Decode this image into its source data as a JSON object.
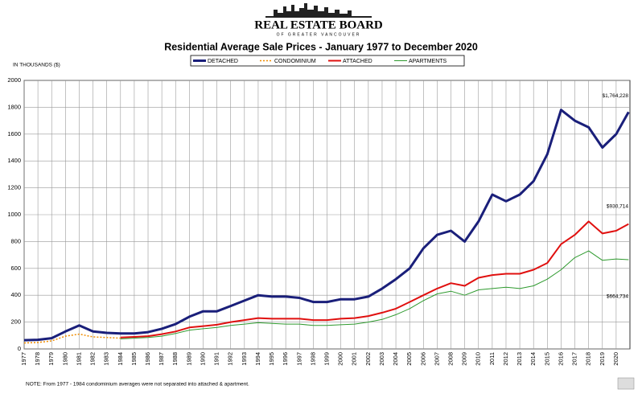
{
  "logo": {
    "name": "REAL ESTATE BOARD",
    "subtitle": "OF GREATER VANCOUVER"
  },
  "chart_data": {
    "type": "line",
    "title": "Residential Average Sale Prices  -  January 1977 to December 2020",
    "y_label": "IN THOUSANDS ($)",
    "note": "NOTE:  From 1977 - 1984 condominium averages were not separated into attached & apartment.",
    "x": [
      1977,
      1978,
      1979,
      1980,
      1981,
      1982,
      1983,
      1984,
      1985,
      1986,
      1987,
      1988,
      1989,
      1990,
      1991,
      1992,
      1993,
      1994,
      1995,
      1996,
      1997,
      1998,
      1999,
      2000,
      2001,
      2002,
      2003,
      2004,
      2005,
      2006,
      2007,
      2008,
      2009,
      2010,
      2011,
      2012,
      2013,
      2014,
      2015,
      2016,
      2017,
      2018,
      2019,
      2020,
      2020.9
    ],
    "xlim": [
      1977,
      2021
    ],
    "xticks": [
      1977,
      1978,
      1979,
      1980,
      1981,
      1982,
      1983,
      1984,
      1985,
      1986,
      1987,
      1988,
      1989,
      1990,
      1991,
      1992,
      1993,
      1994,
      1995,
      1996,
      1997,
      1998,
      1999,
      2000,
      2001,
      2002,
      2003,
      2004,
      2005,
      2006,
      2007,
      2008,
      2009,
      2010,
      2011,
      2012,
      2013,
      2014,
      2015,
      2016,
      2017,
      2018,
      2019,
      2020
    ],
    "ylim": [
      0,
      2000
    ],
    "yticks": [
      0,
      200,
      400,
      600,
      800,
      1000,
      1200,
      1400,
      1600,
      1800,
      2000
    ],
    "grid": true,
    "series": [
      {
        "name": "DETACHED",
        "color": "#1a1f7a",
        "line_width": 3,
        "dashed": false,
        "values": [
          65,
          68,
          80,
          130,
          175,
          130,
          120,
          115,
          115,
          125,
          150,
          185,
          240,
          280,
          280,
          320,
          360,
          400,
          390,
          390,
          380,
          350,
          350,
          370,
          370,
          390,
          450,
          520,
          600,
          750,
          850,
          880,
          800,
          950,
          1150,
          1100,
          1150,
          1250,
          1450,
          1780,
          1700,
          1650,
          1500,
          1600,
          1764.228
        ]
      },
      {
        "name": "CONDOMINIUM",
        "color": "#f08c00",
        "line_width": 1.5,
        "dashed": true,
        "values": [
          45,
          48,
          60,
          95,
          110,
          90,
          85,
          80,
          null,
          null,
          null,
          null,
          null,
          null,
          null,
          null,
          null,
          null,
          null,
          null,
          null,
          null,
          null,
          null,
          null,
          null,
          null,
          null,
          null,
          null,
          null,
          null,
          null,
          null,
          null,
          null,
          null,
          null,
          null,
          null,
          null,
          null,
          null,
          null,
          null
        ]
      },
      {
        "name": "ATTACHED",
        "color": "#e0100f",
        "line_width": 2,
        "dashed": false,
        "values": [
          null,
          null,
          null,
          null,
          null,
          null,
          null,
          85,
          90,
          95,
          110,
          130,
          160,
          170,
          180,
          200,
          215,
          230,
          225,
          225,
          225,
          215,
          215,
          225,
          230,
          245,
          270,
          300,
          350,
          400,
          450,
          490,
          470,
          530,
          550,
          560,
          560,
          590,
          640,
          780,
          850,
          950,
          860,
          880,
          930.714
        ]
      },
      {
        "name": "APARTMENTS",
        "color": "#2e9a2e",
        "line_width": 1,
        "dashed": false,
        "values": [
          null,
          null,
          null,
          null,
          null,
          null,
          null,
          75,
          80,
          85,
          95,
          115,
          140,
          150,
          160,
          175,
          185,
          195,
          190,
          185,
          185,
          175,
          175,
          180,
          185,
          200,
          220,
          255,
          300,
          360,
          410,
          430,
          400,
          440,
          450,
          460,
          450,
          470,
          520,
          590,
          680,
          730,
          660,
          670,
          664.734
        ]
      }
    ],
    "annotations": [
      {
        "value": 1764.228,
        "label": "$1,764,228"
      },
      {
        "value": 930.714,
        "label": "$930,714"
      },
      {
        "value": 664.734,
        "label": "$664,734"
      }
    ]
  }
}
